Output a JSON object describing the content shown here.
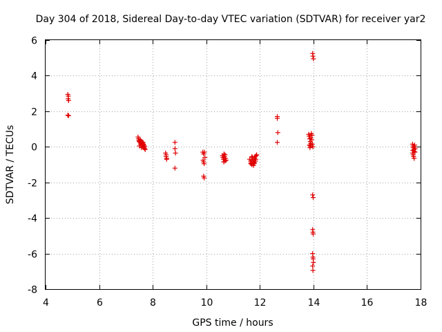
{
  "chart_data": {
    "type": "scatter",
    "title": "Day 304 of 2018, Sidereal Day-to-day VTEC variation (SDTVAR) for receiver yar2",
    "xlabel": "GPS time / hours",
    "ylabel": "SDTVAR / TECUs",
    "xlim": [
      4,
      18
    ],
    "ylim": [
      -8,
      6
    ],
    "xticks": [
      4,
      6,
      8,
      10,
      12,
      14,
      16,
      18
    ],
    "yticks": [
      -8,
      -6,
      -4,
      -2,
      0,
      2,
      4,
      6
    ],
    "xtick_labels": [
      "4",
      "6",
      "8",
      "10",
      "12",
      "14",
      "16",
      "18"
    ],
    "ytick_labels": [
      "-8",
      "-6",
      "-4",
      "-2",
      "0",
      "2",
      "4",
      "6"
    ],
    "grid": true,
    "marker": "+",
    "color": "#e00000",
    "series": [
      {
        "name": "SDTVAR",
        "points": [
          [
            4.83,
            2.95
          ],
          [
            4.85,
            2.85
          ],
          [
            4.84,
            2.7
          ],
          [
            4.86,
            2.6
          ],
          [
            4.83,
            1.78
          ],
          [
            4.86,
            1.75
          ],
          [
            7.45,
            0.55
          ],
          [
            7.47,
            0.45
          ],
          [
            7.48,
            0.35
          ],
          [
            7.5,
            0.3
          ],
          [
            7.52,
            0.25
          ],
          [
            7.53,
            0.4
          ],
          [
            7.55,
            0.15
          ],
          [
            7.56,
            0.2
          ],
          [
            7.58,
            0.3
          ],
          [
            7.6,
            0.1
          ],
          [
            7.6,
            0.05
          ],
          [
            7.62,
            0.2
          ],
          [
            7.63,
            0.0
          ],
          [
            7.65,
            0.1
          ],
          [
            7.67,
            -0.05
          ],
          [
            7.68,
            0.05
          ],
          [
            7.7,
            -0.1
          ],
          [
            7.72,
            -0.15
          ],
          [
            7.5,
            0.05
          ],
          [
            7.55,
            0.35
          ],
          [
            7.58,
            -0.05
          ],
          [
            7.64,
            0.25
          ],
          [
            7.66,
            0.15
          ],
          [
            7.7,
            0.02
          ],
          [
            8.48,
            -0.35
          ],
          [
            8.5,
            -0.45
          ],
          [
            8.5,
            -0.55
          ],
          [
            8.52,
            -0.65
          ],
          [
            8.52,
            -0.7
          ],
          [
            8.83,
            0.25
          ],
          [
            8.83,
            -0.1
          ],
          [
            8.85,
            -0.35
          ],
          [
            8.83,
            -1.2
          ],
          [
            9.87,
            -0.3
          ],
          [
            9.9,
            -0.4
          ],
          [
            9.88,
            -0.75
          ],
          [
            9.9,
            -0.85
          ],
          [
            9.92,
            -0.95
          ],
          [
            9.9,
            -1.65
          ],
          [
            9.92,
            -1.75
          ],
          [
            9.95,
            -0.6
          ],
          [
            9.93,
            -0.3
          ],
          [
            10.6,
            -0.5
          ],
          [
            10.62,
            -0.6
          ],
          [
            10.64,
            -0.7
          ],
          [
            10.65,
            -0.85
          ],
          [
            10.68,
            -0.55
          ],
          [
            10.7,
            -0.45
          ],
          [
            10.72,
            -0.65
          ],
          [
            10.74,
            -0.75
          ],
          [
            10.66,
            -0.4
          ],
          [
            10.7,
            -0.8
          ],
          [
            11.62,
            -0.7
          ],
          [
            11.65,
            -0.8
          ],
          [
            11.67,
            -0.9
          ],
          [
            11.7,
            -1.0
          ],
          [
            11.72,
            -0.6
          ],
          [
            11.74,
            -0.75
          ],
          [
            11.76,
            -0.85
          ],
          [
            11.78,
            -0.95
          ],
          [
            11.8,
            -0.65
          ],
          [
            11.82,
            -0.55
          ],
          [
            11.84,
            -0.8
          ],
          [
            11.86,
            -0.5
          ],
          [
            11.88,
            -0.45
          ],
          [
            11.7,
            -0.55
          ],
          [
            11.76,
            -1.05
          ],
          [
            11.8,
            -0.9
          ],
          [
            11.66,
            -0.95
          ],
          [
            11.85,
            -0.7
          ],
          [
            12.65,
            1.7
          ],
          [
            12.65,
            1.6
          ],
          [
            12.67,
            0.8
          ],
          [
            12.65,
            0.25
          ],
          [
            13.82,
            0.7
          ],
          [
            13.84,
            0.6
          ],
          [
            13.86,
            0.45
          ],
          [
            13.88,
            0.3
          ],
          [
            13.9,
            0.2
          ],
          [
            13.85,
            0.1
          ],
          [
            13.87,
            -0.05
          ],
          [
            13.9,
            0.5
          ],
          [
            13.92,
            0.75
          ],
          [
            13.94,
            0.4
          ],
          [
            13.96,
            0.15
          ],
          [
            13.98,
            0.0
          ],
          [
            13.95,
            0.65
          ],
          [
            13.88,
            0.05
          ],
          [
            13.97,
            5.25
          ],
          [
            13.98,
            5.1
          ],
          [
            14.0,
            4.95
          ],
          [
            13.97,
            -2.7
          ],
          [
            13.99,
            -2.85
          ],
          [
            13.97,
            -4.65
          ],
          [
            13.98,
            -4.8
          ],
          [
            13.99,
            -4.9
          ],
          [
            13.97,
            -6.0
          ],
          [
            13.98,
            -6.2
          ],
          [
            13.99,
            -6.3
          ],
          [
            14.0,
            -6.5
          ],
          [
            13.97,
            -6.7
          ],
          [
            13.98,
            -6.95
          ],
          [
            17.7,
            0.15
          ],
          [
            17.72,
            0.05
          ],
          [
            17.73,
            -0.05
          ],
          [
            17.75,
            -0.15
          ],
          [
            17.76,
            -0.25
          ],
          [
            17.7,
            -0.35
          ],
          [
            17.72,
            -0.45
          ],
          [
            17.74,
            -0.55
          ],
          [
            17.76,
            -0.65
          ],
          [
            17.78,
            0.1
          ],
          [
            17.8,
            -0.1
          ],
          [
            17.79,
            -0.3
          ],
          [
            17.71,
            -0.2
          ],
          [
            17.77,
            0.0
          ]
        ]
      }
    ]
  }
}
